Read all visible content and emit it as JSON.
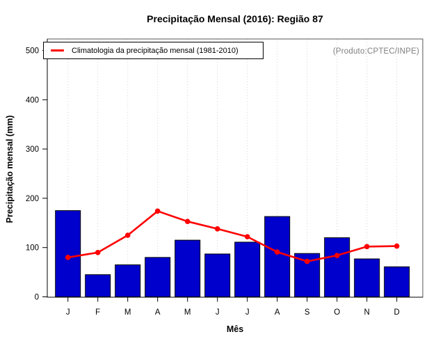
{
  "annotation": "(Produto:CPTEC/INPE)",
  "chart_data": {
    "type": "bar",
    "title": "Precipitação Mensal (2016): Região 87",
    "xlabel": "Mês",
    "ylabel": "Precipitação mensal (mm)",
    "categories": [
      "J",
      "F",
      "M",
      "A",
      "M",
      "J",
      "J",
      "A",
      "S",
      "O",
      "N",
      "D"
    ],
    "series": [
      {
        "name": "Precipitação mensal 2016",
        "type": "bar",
        "color": "#0000CC",
        "values": [
          175,
          45,
          65,
          80,
          115,
          87,
          111,
          163,
          88,
          120,
          77,
          61
        ]
      },
      {
        "name": "Climatologia da precipitação mensal (1981-2010)",
        "type": "line",
        "color": "#FF0000",
        "values": [
          80,
          90,
          125,
          174,
          153,
          138,
          122,
          91,
          72,
          84,
          102,
          103
        ]
      }
    ],
    "ylim": [
      0,
      500
    ],
    "yticks": [
      0,
      100,
      200,
      300,
      400,
      500
    ],
    "grid": "vertical-dotted",
    "legend_position": "top-left"
  },
  "colors": {
    "bar": "#0000CC",
    "bar_border": "#000000",
    "line": "#FF0000",
    "grid": "#D4D4D4",
    "box": "#555555",
    "axis": "#000000",
    "annotation_text": "#7F7F7F"
  }
}
